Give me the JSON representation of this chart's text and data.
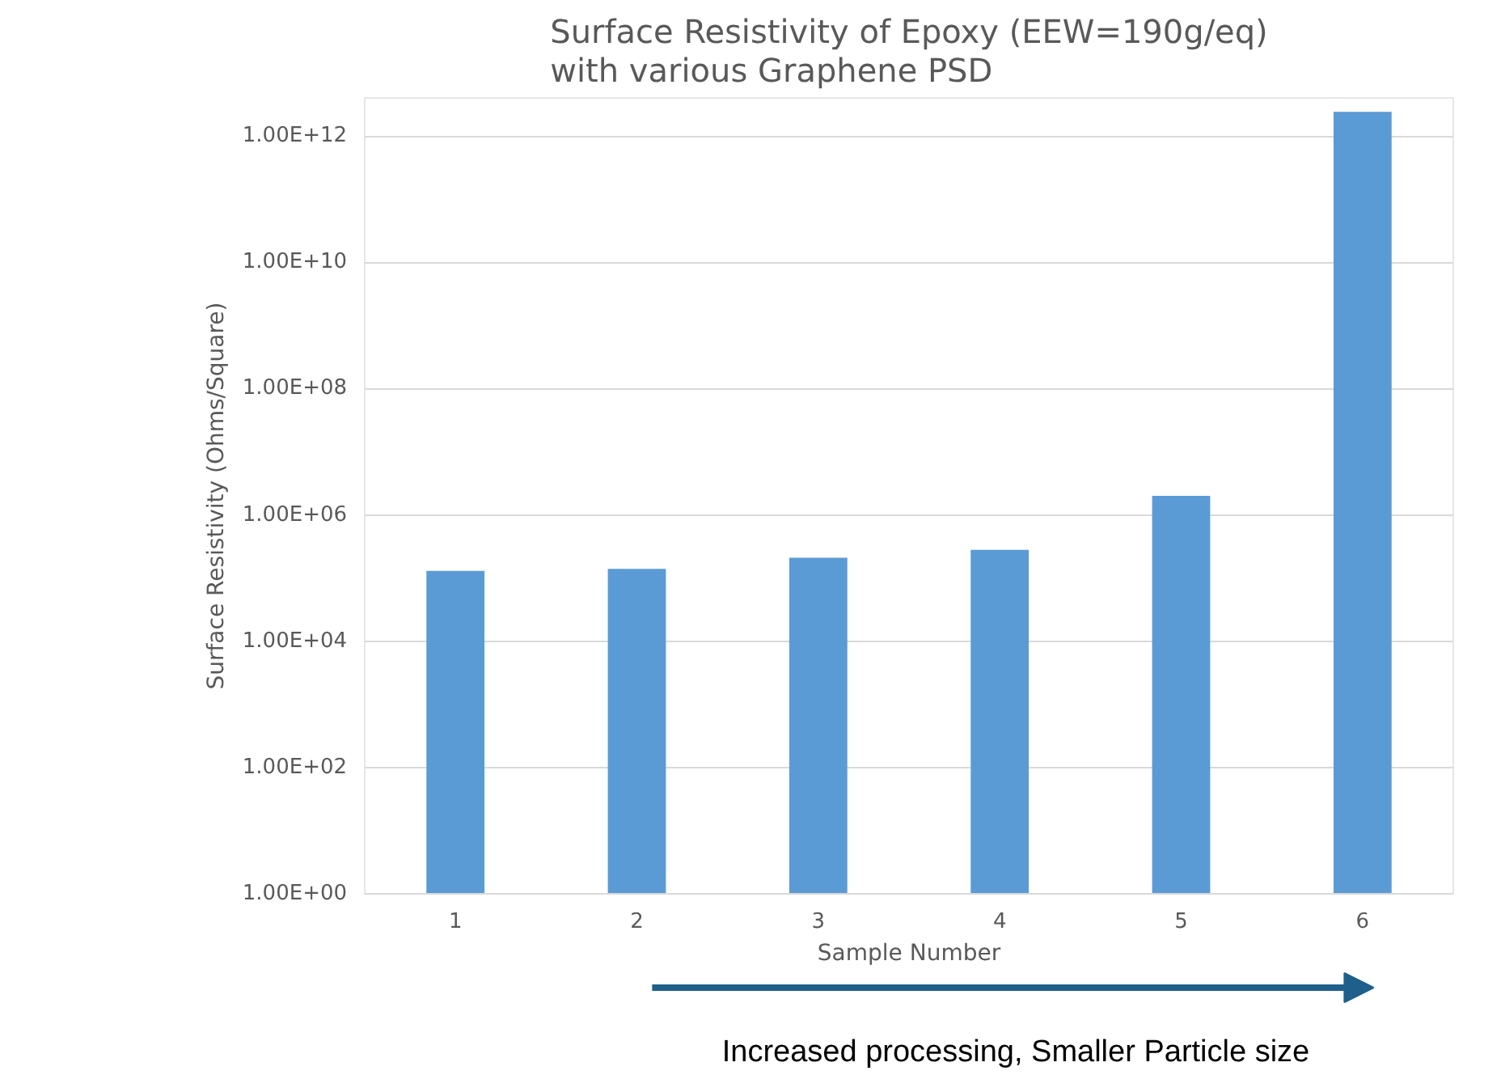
{
  "chart_data": {
    "type": "bar",
    "title": "Surface Resistivity of Epoxy (EEW=190g/eq) with various Graphene PSD",
    "xlabel": "Sample Number",
    "ylabel": "Surface Resistivity (Ohms/Square)",
    "categories": [
      "1",
      "2",
      "3",
      "4",
      "5",
      "6"
    ],
    "values": [
      130000,
      140000,
      210000,
      280000,
      2000000,
      2400000000000
    ],
    "color": "#5b9bd5",
    "log": "y",
    "ylim": [
      1,
      4000000000000
    ],
    "yticks": [
      {
        "value": 1,
        "label": "1.00E+00"
      },
      {
        "value": 100,
        "label": "1.00E+02"
      },
      {
        "value": 10000,
        "label": "1.00E+04"
      },
      {
        "value": 1000000,
        "label": "1.00E+06"
      },
      {
        "value": 100000000,
        "label": "1.00E+08"
      },
      {
        "value": 10000000000,
        "label": "1.00E+10"
      },
      {
        "value": 1000000000000,
        "label": "1.00E+12"
      }
    ],
    "grid": "y",
    "annotations": [
      "Increased processing, Smaller Particle size"
    ]
  }
}
